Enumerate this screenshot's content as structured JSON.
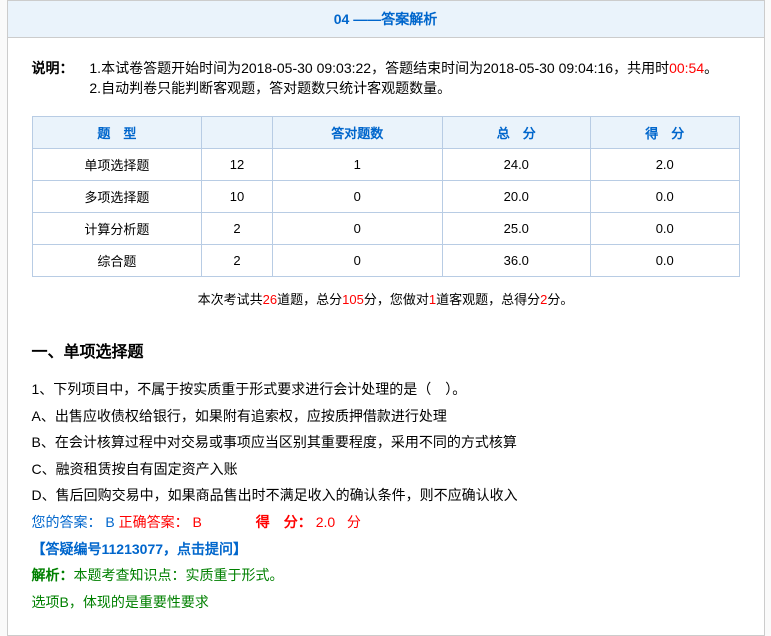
{
  "title": "04 ——答案解析",
  "explain": {
    "label": "说明：",
    "line1_prefix": "1.本试卷答题开始时间为2018-05-30 09:03:22，答题结束时间为2018-05-30 09:04:16，共用时",
    "line1_time": "00:54",
    "line1_suffix": "。",
    "line2": "2.自动判卷只能判断客观题，答对题数只统计客观题数量。"
  },
  "table": {
    "headers": [
      "题　型",
      "",
      "答对题数",
      "总　分",
      "得　分"
    ],
    "rows": [
      [
        "单项选择题",
        "12",
        "1",
        "24.0",
        "2.0"
      ],
      [
        "多项选择题",
        "10",
        "0",
        "20.0",
        "0.0"
      ],
      [
        "计算分析题",
        "2",
        "0",
        "25.0",
        "0.0"
      ],
      [
        "综合题",
        "2",
        "0",
        "36.0",
        "0.0"
      ]
    ],
    "column_widths": [
      "24%",
      "10%",
      "24%",
      "21%",
      "21%"
    ],
    "header_bg": "#eaf3fb",
    "header_color": "#0066cc",
    "border_color": "#b8cce4"
  },
  "summary": {
    "prefix": "本次考试共",
    "total_q": "26",
    "mid1": "道题，总分",
    "total_score": "105",
    "mid2": "分，您做对",
    "right_q": "1",
    "mid3": "道客观题，总得分",
    "got_score": "2",
    "suffix": "分。"
  },
  "section_title": "一、单项选择题",
  "question": {
    "stem": "1、下列项目中，不属于按实质重于形式要求进行会计处理的是（　）。",
    "optA": "A、出售应收债权给银行，如果附有追索权，应按质押借款进行处理",
    "optB": "B、在会计核算过程中对交易或事项应当区别其重要程度，采用不同的方式核算",
    "optC": "C、融资租赁按自有固定资产入账",
    "optD": "D、售后回购交易中，如果商品售出时不满足收入的确认条件，则不应确认收入",
    "your_answer_label": "您的答案：",
    "your_answer_val": "B",
    "correct_label": "正确答案：",
    "correct_val": "B",
    "score_label": "得　分：",
    "score_val": "2.0",
    "score_unit": "分",
    "ask_link": "【答疑编号11213077，点击提问】",
    "analysis_label": "解析：",
    "analysis1": "本题考查知识点：实质重于形式。",
    "analysis2": "选项B，体现的是重要性要求"
  },
  "colors": {
    "red": "#ff0000",
    "blue": "#0066cc",
    "green": "#008000"
  }
}
